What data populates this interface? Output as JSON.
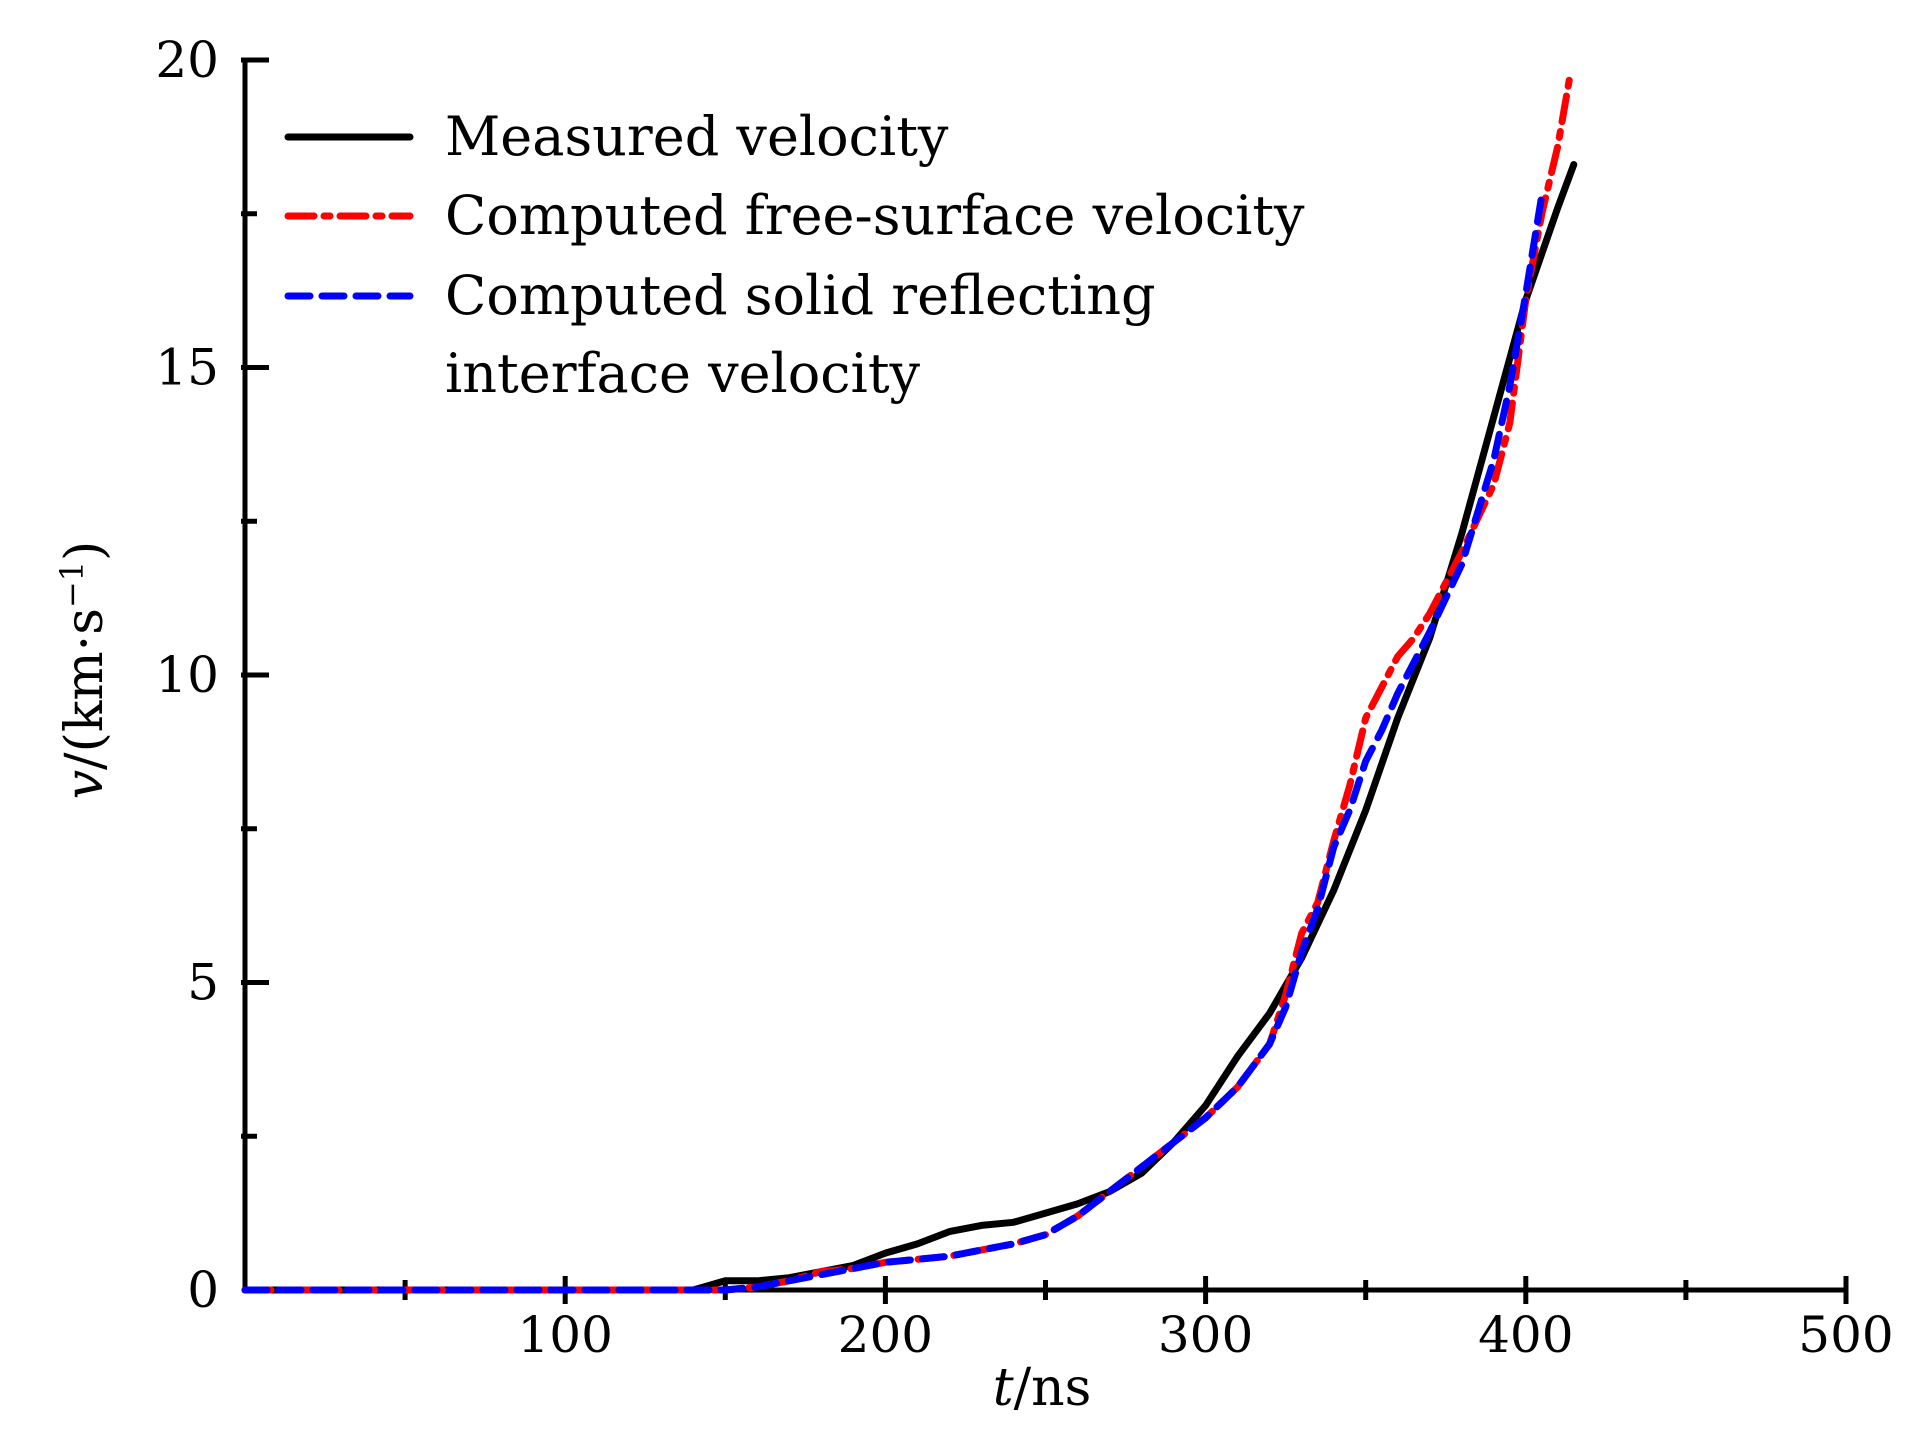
{
  "chart_data": {
    "type": "line",
    "xlabel_italic": "t",
    "xlabel_unit": "/ns",
    "ylabel_italic": "v",
    "ylabel_unit": "/(km·s",
    "ylabel_sup": "−1",
    "ylabel_close": ")",
    "xlim": [
      0,
      500
    ],
    "ylim": [
      0,
      20
    ],
    "x_ticks": [
      100,
      200,
      300,
      400,
      500
    ],
    "y_ticks": [
      0,
      5,
      10,
      15,
      20
    ],
    "x_tick_labels": [
      "100",
      "200",
      "300",
      "400",
      "500"
    ],
    "y_tick_labels": [
      "0",
      "5",
      "10",
      "15",
      "20"
    ],
    "grid": false,
    "legend_position": "top-left",
    "series": [
      {
        "name": "Measured velocity",
        "color": "#000000",
        "style": "solid",
        "points": [
          [
            0,
            0
          ],
          [
            140,
            0
          ],
          [
            150,
            0.15
          ],
          [
            160,
            0.15
          ],
          [
            170,
            0.2
          ],
          [
            180,
            0.3
          ],
          [
            190,
            0.4
          ],
          [
            200,
            0.6
          ],
          [
            210,
            0.75
          ],
          [
            220,
            0.95
          ],
          [
            230,
            1.05
          ],
          [
            240,
            1.1
          ],
          [
            250,
            1.25
          ],
          [
            260,
            1.4
          ],
          [
            270,
            1.6
          ],
          [
            280,
            1.9
          ],
          [
            290,
            2.4
          ],
          [
            300,
            3.0
          ],
          [
            310,
            3.8
          ],
          [
            320,
            4.5
          ],
          [
            330,
            5.4
          ],
          [
            340,
            6.5
          ],
          [
            350,
            7.8
          ],
          [
            360,
            9.3
          ],
          [
            370,
            10.6
          ],
          [
            380,
            12.3
          ],
          [
            390,
            14.2
          ],
          [
            400,
            16.1
          ],
          [
            410,
            17.6
          ],
          [
            415,
            18.3
          ]
        ]
      },
      {
        "name": "Computed free-surface velocity",
        "color": "#ff0000",
        "style": "dashdot",
        "points": [
          [
            0,
            0
          ],
          [
            150,
            0
          ],
          [
            160,
            0.05
          ],
          [
            170,
            0.15
          ],
          [
            180,
            0.3
          ],
          [
            190,
            0.35
          ],
          [
            200,
            0.45
          ],
          [
            210,
            0.5
          ],
          [
            220,
            0.55
          ],
          [
            230,
            0.65
          ],
          [
            240,
            0.75
          ],
          [
            250,
            0.9
          ],
          [
            260,
            1.2
          ],
          [
            270,
            1.6
          ],
          [
            280,
            2.0
          ],
          [
            290,
            2.4
          ],
          [
            300,
            2.8
          ],
          [
            310,
            3.3
          ],
          [
            320,
            4.0
          ],
          [
            325,
            4.8
          ],
          [
            330,
            5.8
          ],
          [
            335,
            6.3
          ],
          [
            340,
            7.3
          ],
          [
            345,
            8.2
          ],
          [
            350,
            9.3
          ],
          [
            355,
            9.8
          ],
          [
            360,
            10.3
          ],
          [
            365,
            10.6
          ],
          [
            370,
            11.0
          ],
          [
            380,
            12.0
          ],
          [
            390,
            13.1
          ],
          [
            395,
            14.1
          ],
          [
            400,
            16.1
          ],
          [
            405,
            17.5
          ],
          [
            410,
            18.6
          ],
          [
            414,
            19.8
          ]
        ]
      },
      {
        "name": "Computed solid reflecting interface velocity",
        "color": "#0000ff",
        "style": "dashed",
        "points": [
          [
            0,
            0
          ],
          [
            150,
            0
          ],
          [
            160,
            0.05
          ],
          [
            170,
            0.15
          ],
          [
            180,
            0.25
          ],
          [
            190,
            0.35
          ],
          [
            200,
            0.45
          ],
          [
            210,
            0.5
          ],
          [
            220,
            0.55
          ],
          [
            230,
            0.65
          ],
          [
            240,
            0.75
          ],
          [
            250,
            0.9
          ],
          [
            260,
            1.2
          ],
          [
            270,
            1.6
          ],
          [
            280,
            2.0
          ],
          [
            290,
            2.4
          ],
          [
            300,
            2.8
          ],
          [
            310,
            3.3
          ],
          [
            320,
            4.0
          ],
          [
            325,
            4.6
          ],
          [
            330,
            5.5
          ],
          [
            335,
            6.2
          ],
          [
            340,
            7.2
          ],
          [
            345,
            7.8
          ],
          [
            350,
            8.6
          ],
          [
            355,
            9.1
          ],
          [
            360,
            9.7
          ],
          [
            370,
            10.7
          ],
          [
            380,
            11.8
          ],
          [
            390,
            13.5
          ],
          [
            395,
            14.7
          ],
          [
            400,
            16.2
          ],
          [
            405,
            17.8
          ]
        ]
      }
    ],
    "legend_labels": [
      [
        "Measured velocity"
      ],
      [
        "Computed free-surface velocity"
      ],
      [
        "Computed solid reflecting",
        "interface velocity"
      ]
    ]
  }
}
